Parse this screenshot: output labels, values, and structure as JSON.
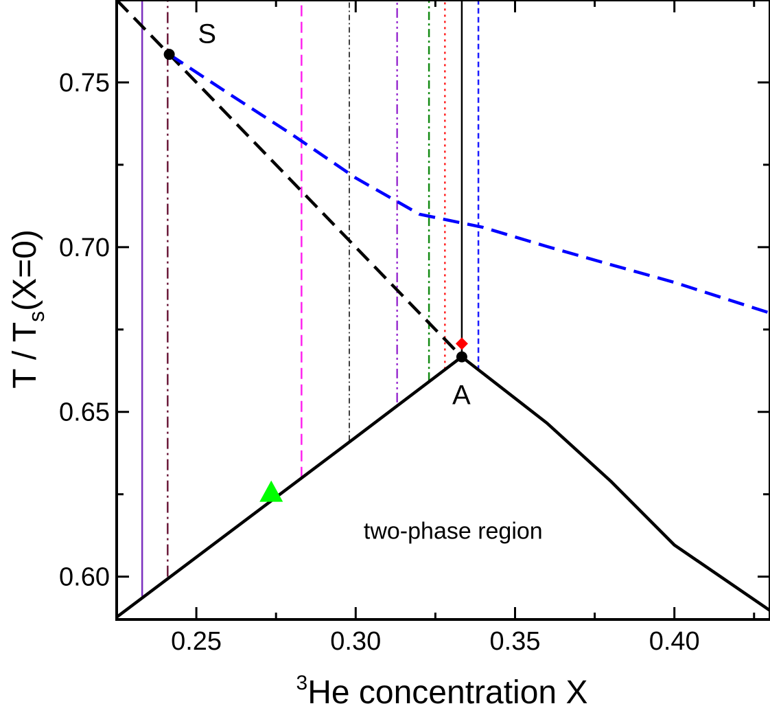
{
  "chart_data": {
    "type": "line",
    "xlabel_sup": "3",
    "xlabel_main": "He concentration X",
    "ylabel_main": "T / T",
    "ylabel_sub": "s",
    "ylabel_tail": "(X=0)",
    "xlim": [
      0.225,
      0.43
    ],
    "ylim": [
      0.587,
      0.775
    ],
    "x_ticks": [
      {
        "value": 0.25,
        "label": "0.25"
      },
      {
        "value": 0.3,
        "label": "0.30"
      },
      {
        "value": 0.35,
        "label": "0.35"
      },
      {
        "value": 0.4,
        "label": "0.40"
      }
    ],
    "x_minor_ticks": [
      0.275,
      0.325,
      0.375,
      0.425
    ],
    "y_ticks": [
      {
        "value": 0.6,
        "label": "0.60"
      },
      {
        "value": 0.65,
        "label": "0.65"
      },
      {
        "value": 0.7,
        "label": "0.70"
      },
      {
        "value": 0.75,
        "label": "0.75"
      }
    ],
    "y_minor_ticks": [
      0.625,
      0.675,
      0.725
    ],
    "grid": false,
    "series": [
      {
        "id": "phase-boundary-left",
        "color": "#000000",
        "dash": "solid",
        "width": 4.5,
        "points": [
          [
            0.225,
            0.5877
          ],
          [
            0.3,
            0.6423
          ],
          [
            0.3333,
            0.6667
          ]
        ]
      },
      {
        "id": "phase-boundary-right",
        "color": "#000000",
        "dash": "solid",
        "width": 4.5,
        "points": [
          [
            0.3333,
            0.6667
          ],
          [
            0.36,
            0.6466
          ],
          [
            0.38,
            0.629
          ],
          [
            0.4,
            0.6096
          ],
          [
            0.43,
            0.5897
          ]
        ]
      },
      {
        "id": "black-dashed-line",
        "color": "#000000",
        "dash": "24,12",
        "width": 4.5,
        "points": [
          [
            0.225,
            0.775
          ],
          [
            0.3333,
            0.6667
          ]
        ]
      },
      {
        "id": "blue-dashed-curve",
        "color": "#0000ff",
        "dash": "24,12",
        "width": 4.5,
        "points": [
          [
            0.2415,
            0.7585
          ],
          [
            0.26,
            0.7467
          ],
          [
            0.28,
            0.7342
          ],
          [
            0.3,
            0.721
          ],
          [
            0.32,
            0.71
          ],
          [
            0.34,
            0.706
          ],
          [
            0.36,
            0.7002
          ],
          [
            0.38,
            0.6947
          ],
          [
            0.4,
            0.6893
          ],
          [
            0.43,
            0.68
          ]
        ]
      }
    ],
    "vertical_lines": [
      {
        "id": "vline-purple-solid",
        "x": 0.233,
        "y0": 0.594,
        "y1": 0.775,
        "color": "#7b2fbf",
        "dash": "solid",
        "width": 2.5
      },
      {
        "id": "vline-maroon-dashdot",
        "x": 0.241,
        "y0": 0.6,
        "y1": 0.775,
        "color": "#6b1a3a",
        "dash": "16,6,3,6",
        "width": 2.5
      },
      {
        "id": "vline-magenta-dashed",
        "x": 0.283,
        "y0": 0.63,
        "y1": 0.775,
        "color": "#ff22ee",
        "dash": "16,8",
        "width": 2.5
      },
      {
        "id": "vline-black-dashdot",
        "x": 0.298,
        "y0": 0.6413,
        "y1": 0.775,
        "color": "#000000",
        "dash": "8,4,2,4",
        "width": 1.5
      },
      {
        "id": "vline-violet-dashdotdot",
        "x": 0.313,
        "y0": 0.6529,
        "y1": 0.775,
        "color": "#9a30d0",
        "dash": "14,5,3,5,3,5",
        "width": 2.5
      },
      {
        "id": "vline-green-dashdot",
        "x": 0.323,
        "y0": 0.6595,
        "y1": 0.775,
        "color": "#138a13",
        "dash": "12,5,3,5",
        "width": 2.5
      },
      {
        "id": "vline-red-dotted",
        "x": 0.328,
        "y0": 0.663,
        "y1": 0.775,
        "color": "#ff2020",
        "dash": "3,6",
        "width": 2.5
      },
      {
        "id": "vline-black-solid",
        "x": 0.3333,
        "y0": 0.6667,
        "y1": 0.775,
        "color": "#000000",
        "dash": "solid",
        "width": 2.5
      },
      {
        "id": "vline-blue-dashed",
        "x": 0.3385,
        "y0": 0.6625,
        "y1": 0.775,
        "color": "#1a1aff",
        "dash": "8,5",
        "width": 2.5
      }
    ],
    "markers": [
      {
        "id": "point-s-marker",
        "x": 0.2415,
        "y": 0.7585,
        "shape": "circle",
        "color": "#000000"
      },
      {
        "id": "point-a-marker",
        "x": 0.3333,
        "y": 0.6667,
        "shape": "circle",
        "color": "#000000"
      },
      {
        "id": "red-diamond-marker",
        "x": 0.3333,
        "y": 0.6707,
        "shape": "diamond",
        "color": "#ff0000"
      },
      {
        "id": "green-triangle-marker",
        "x": 0.2735,
        "y": 0.625,
        "shape": "triangle",
        "color": "#00ff00"
      }
    ],
    "annotations": [
      {
        "id": "label-s",
        "text": "S",
        "x": 0.2505,
        "y": 0.762,
        "size": 40
      },
      {
        "id": "label-a",
        "text": "A",
        "x": 0.3303,
        "y": 0.6523,
        "size": 40
      },
      {
        "id": "label-two-phase",
        "text": "two-phase region",
        "x": 0.3025,
        "y": 0.6115,
        "size": 34
      }
    ]
  }
}
